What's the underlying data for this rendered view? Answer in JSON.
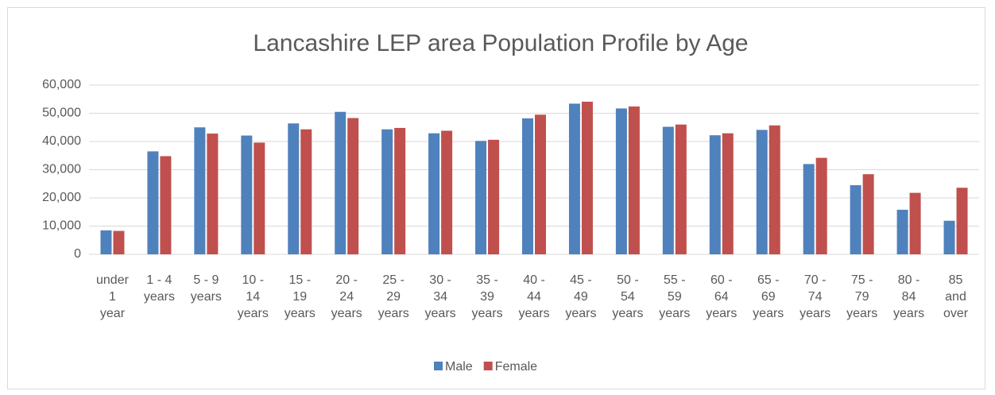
{
  "chart_data": {
    "type": "bar",
    "title": "Lancashire LEP area Population Profile by Age",
    "categories": [
      "under 1 year",
      "1 - 4 years",
      "5 - 9 years",
      "10 - 14 years",
      "15 - 19 years",
      "20 - 24 years",
      "25 - 29 years",
      "30 - 34 years",
      "35 - 39 years",
      "40 - 44 years",
      "45 - 49 years",
      "50 - 54 years",
      "55 - 59 years",
      "60 - 64 years",
      "65 - 69 years",
      "70 - 74 years",
      "75 - 79 years",
      "80 - 84 years",
      "85 and over"
    ],
    "series": [
      {
        "name": "Male",
        "color": "#4f81bd",
        "values": [
          8500,
          36500,
          45000,
          42100,
          46400,
          50500,
          44300,
          42900,
          40200,
          48200,
          53400,
          51700,
          45200,
          42200,
          44100,
          32000,
          24500,
          15800,
          11900
        ]
      },
      {
        "name": "Female",
        "color": "#c0504d",
        "values": [
          8300,
          34800,
          42800,
          39600,
          44300,
          48300,
          44800,
          43800,
          40600,
          49500,
          54100,
          52400,
          46000,
          42900,
          45700,
          34200,
          28400,
          21800,
          23600
        ]
      }
    ],
    "ylim": [
      0,
      60000
    ],
    "yticks": [
      0,
      {
        "value": 10000,
        "label": "10,000"
      },
      {
        "value": 20000,
        "label": "20,000"
      },
      {
        "value": 30000,
        "label": "30,000"
      },
      {
        "value": 40000,
        "label": "40,000"
      },
      {
        "value": 50000,
        "label": "50,000"
      },
      {
        "value": 60000,
        "label": "60,000"
      }
    ],
    "grid": true,
    "legend": "bottom"
  }
}
